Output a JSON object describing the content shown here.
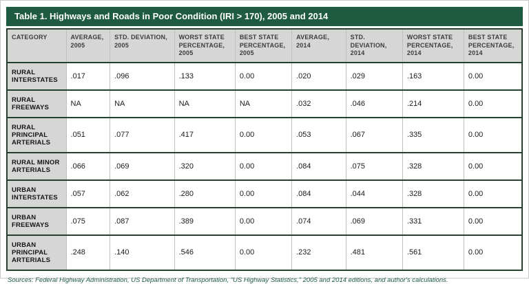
{
  "title": "Table 1. Highways and Roads in Poor Condition (IRI > 170), 2005 and 2014",
  "footer": "Sources: Federal Highway Administration, US Department of Transportation, \"US Highway Statistics,\" 2005 and 2014 editions, and author's calculations.",
  "colors": {
    "accent_green": "#1e5b41",
    "header_gray": "#d6d6d6",
    "row_border_dark": "#26402f",
    "column_border_light": "#bfbfbf"
  },
  "table": {
    "columns": [
      "CATEGORY",
      "AVERAGE, 2005",
      "STD. DEVIATION, 2005",
      "WORST STATE PERCENTAGE, 2005",
      "BEST STATE PERCENTAGE, 2005",
      "AVERAGE, 2014",
      "STD. DEVIATION, 2014",
      "WORST STATE PERCENTAGE, 2014",
      "BEST STATE PERCENTAGE, 2014"
    ],
    "rows": [
      {
        "category": "RURAL INTERSTATES",
        "values": [
          ".017",
          ".096",
          ".133",
          "0.00",
          ".020",
          ".029",
          ".163",
          "0.00"
        ]
      },
      {
        "category": "RURAL FREEWAYS",
        "values": [
          "NA",
          "NA",
          "NA",
          "NA",
          ".032",
          ".046",
          ".214",
          "0.00"
        ]
      },
      {
        "category": "RURAL PRINCIPAL ARTERIALS",
        "values": [
          ".051",
          ".077",
          ".417",
          "0.00",
          ".053",
          ".067",
          ".335",
          "0.00"
        ]
      },
      {
        "category": "RURAL MINOR ARTERIALS",
        "values": [
          ".066",
          ".069",
          ".320",
          "0.00",
          ".084",
          ".075",
          ".328",
          "0.00"
        ]
      },
      {
        "category": "URBAN INTERSTATES",
        "values": [
          ".057",
          ".062",
          ".280",
          "0.00",
          ".084",
          ".044",
          ".328",
          "0.00"
        ]
      },
      {
        "category": "URBAN FREEWAYS",
        "values": [
          ".075",
          ".087",
          ".389",
          "0.00",
          ".074",
          ".069",
          ".331",
          "0.00"
        ]
      },
      {
        "category": "URBAN PRINCIPAL ARTERIALS",
        "values": [
          ".248",
          ".140",
          ".546",
          "0.00",
          ".232",
          ".481",
          ".561",
          "0.00"
        ]
      }
    ]
  },
  "chart_data": {
    "type": "table",
    "title": "Table 1. Highways and Roads in Poor Condition (IRI > 170), 2005 and 2014",
    "columns": [
      "CATEGORY",
      "AVERAGE, 2005",
      "STD. DEVIATION, 2005",
      "WORST STATE PERCENTAGE, 2005",
      "BEST STATE PERCENTAGE, 2005",
      "AVERAGE, 2014",
      "STD. DEVIATION, 2014",
      "WORST STATE PERCENTAGE, 2014",
      "BEST STATE PERCENTAGE, 2014"
    ],
    "rows": [
      [
        "RURAL INTERSTATES",
        ".017",
        ".096",
        ".133",
        "0.00",
        ".020",
        ".029",
        ".163",
        "0.00"
      ],
      [
        "RURAL FREEWAYS",
        "NA",
        "NA",
        "NA",
        "NA",
        ".032",
        ".046",
        ".214",
        "0.00"
      ],
      [
        "RURAL PRINCIPAL ARTERIALS",
        ".051",
        ".077",
        ".417",
        "0.00",
        ".053",
        ".067",
        ".335",
        "0.00"
      ],
      [
        "RURAL MINOR ARTERIALS",
        ".066",
        ".069",
        ".320",
        "0.00",
        ".084",
        ".075",
        ".328",
        "0.00"
      ],
      [
        "URBAN INTERSTATES",
        ".057",
        ".062",
        ".280",
        "0.00",
        ".084",
        ".044",
        ".328",
        "0.00"
      ],
      [
        "URBAN FREEWAYS",
        ".075",
        ".087",
        ".389",
        "0.00",
        ".074",
        ".069",
        ".331",
        "0.00"
      ],
      [
        "URBAN PRINCIPAL ARTERIALS",
        ".248",
        ".140",
        ".546",
        "0.00",
        ".232",
        ".481",
        ".561",
        "0.00"
      ]
    ],
    "source_note": "Sources: Federal Highway Administration, US Department of Transportation, \"US Highway Statistics,\" 2005 and 2014 editions, and author's calculations."
  }
}
